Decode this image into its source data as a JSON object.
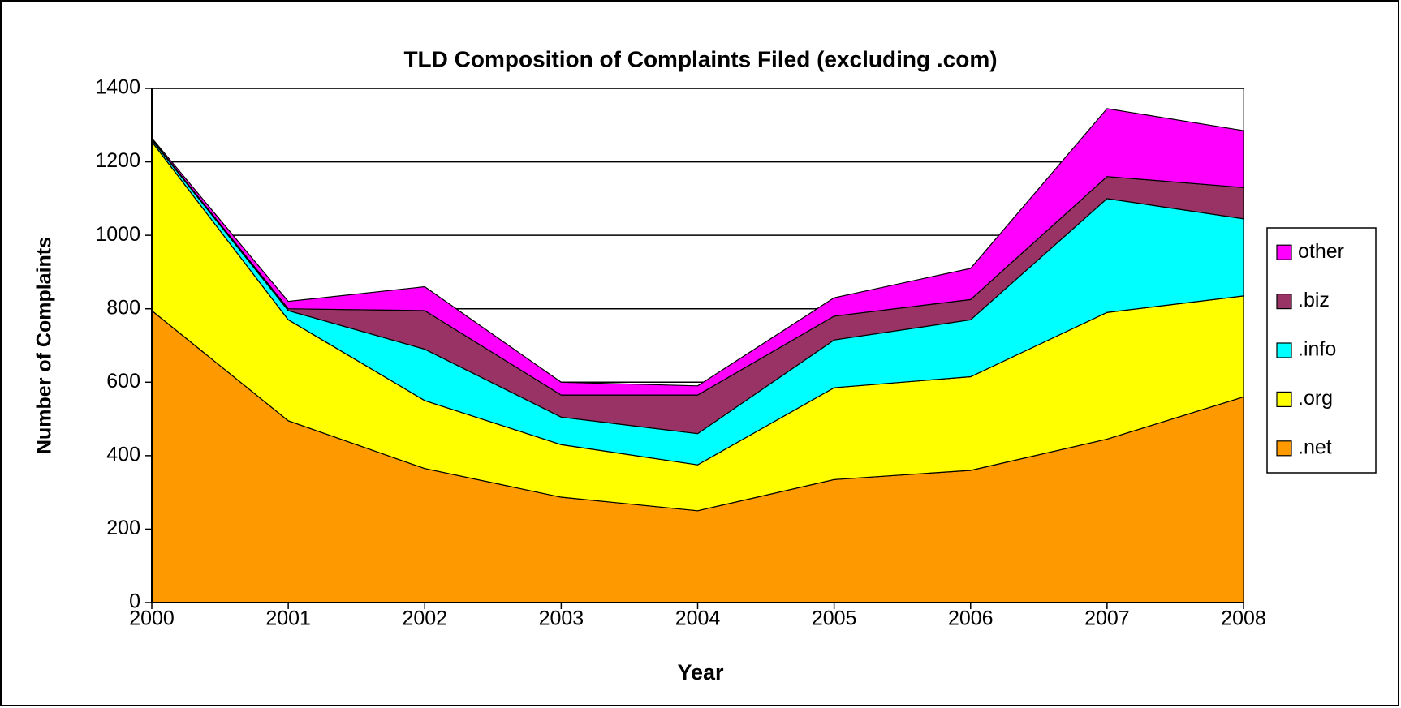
{
  "chart_data": {
    "type": "stacked-area",
    "title": "TLD Composition of Complaints Filed (excluding .com)",
    "x_label": "Year",
    "y_label": "Number of Complaints",
    "categories": [
      "2000",
      "2001",
      "2002",
      "2003",
      "2004",
      "2005",
      "2006",
      "2007",
      "2008"
    ],
    "series": [
      {
        "name": ".net",
        "color": "#ff9900",
        "values": [
          795,
          495,
          365,
          287,
          250,
          335,
          360,
          445,
          560
        ]
      },
      {
        "name": ".org",
        "color": "#ffff00",
        "values": [
          460,
          275,
          185,
          143,
          125,
          250,
          255,
          345,
          275
        ]
      },
      {
        "name": ".info",
        "color": "#00ffff",
        "values": [
          5,
          25,
          140,
          75,
          85,
          130,
          155,
          310,
          210
        ]
      },
      {
        "name": ".biz",
        "color": "#993366",
        "values": [
          2,
          5,
          105,
          60,
          105,
          65,
          55,
          60,
          85
        ]
      },
      {
        "name": "other",
        "color": "#ff00ff",
        "values": [
          3,
          20,
          65,
          35,
          25,
          50,
          85,
          185,
          155
        ]
      }
    ],
    "ylim": [
      0,
      1400
    ],
    "yticks": [
      0,
      200,
      400,
      600,
      800,
      1000,
      1200,
      1400
    ],
    "grid": true,
    "legend": "right"
  }
}
